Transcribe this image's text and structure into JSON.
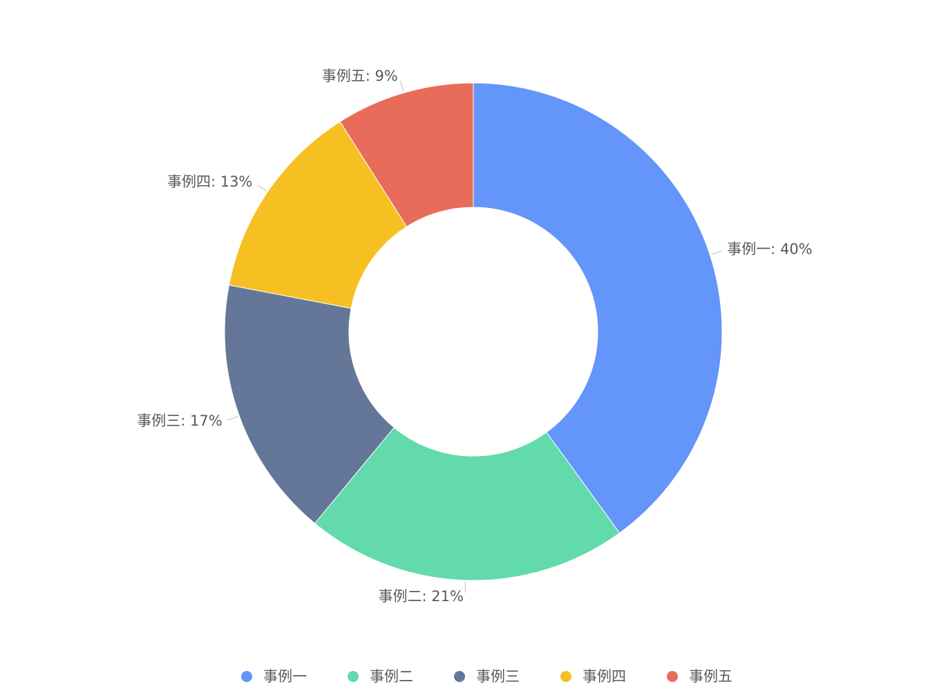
{
  "chart_data": {
    "type": "donut",
    "categories": [
      "事例一",
      "事例二",
      "事例三",
      "事例四",
      "事例五"
    ],
    "values": [
      40,
      21,
      17,
      13,
      9
    ],
    "value_labels": [
      "事例一: 40%",
      "事例二: 21%",
      "事例三: 17%",
      "事例四: 13%",
      "事例五: 9%"
    ],
    "colors": [
      "#6395fa",
      "#62daab",
      "#657798",
      "#f6c022",
      "#e96c5b"
    ],
    "legend": "bottom"
  }
}
